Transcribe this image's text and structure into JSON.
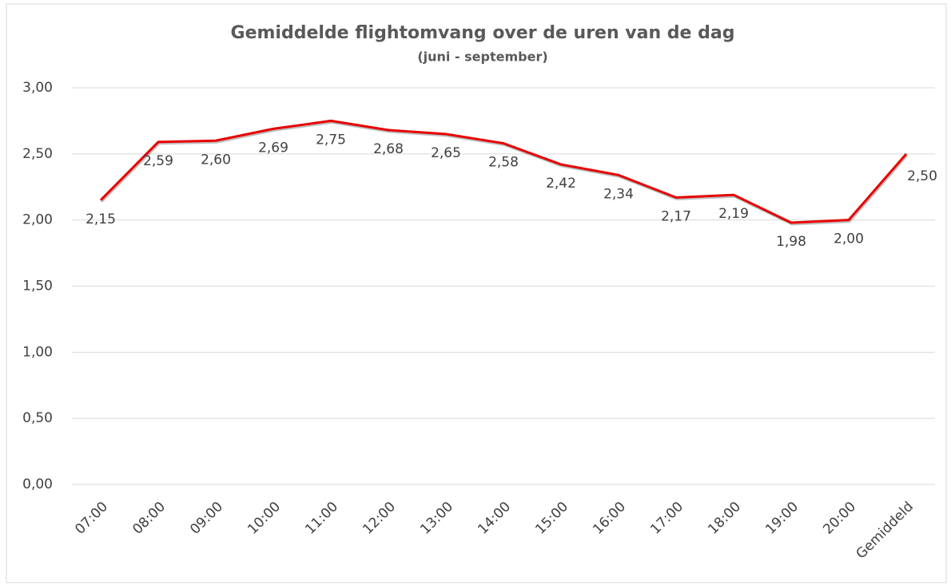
{
  "chart_data": {
    "type": "line",
    "title": "Gemiddelde flightomvang over de uren van de dag",
    "subtitle": "(juni - september)",
    "categories": [
      "07:00",
      "08:00",
      "09:00",
      "10:00",
      "11:00",
      "12:00",
      "13:00",
      "14:00",
      "15:00",
      "16:00",
      "17:00",
      "18:00",
      "19:00",
      "20:00",
      "Gemiddeld"
    ],
    "values": [
      2.15,
      2.59,
      2.6,
      2.69,
      2.75,
      2.68,
      2.65,
      2.58,
      2.42,
      2.34,
      2.17,
      2.19,
      1.98,
      2.0,
      2.5
    ],
    "value_labels": [
      "2,15",
      "2,59",
      "2,60",
      "2,69",
      "2,75",
      "2,68",
      "2,65",
      "2,58",
      "2,42",
      "2,34",
      "2,17",
      "2,19",
      "1,98",
      "2,00",
      "2,50"
    ],
    "color": "#e60000",
    "ylim": [
      0,
      3
    ],
    "yticks": [
      {
        "value": 0,
        "label": "0,00"
      },
      {
        "value": 0.5,
        "label": "0,50"
      },
      {
        "value": 1,
        "label": "1,00"
      },
      {
        "value": 1.5,
        "label": "1,50"
      },
      {
        "value": 2,
        "label": "2,00"
      },
      {
        "value": 2.5,
        "label": "2,50"
      },
      {
        "value": 3,
        "label": "3,00"
      }
    ],
    "grid": true
  }
}
